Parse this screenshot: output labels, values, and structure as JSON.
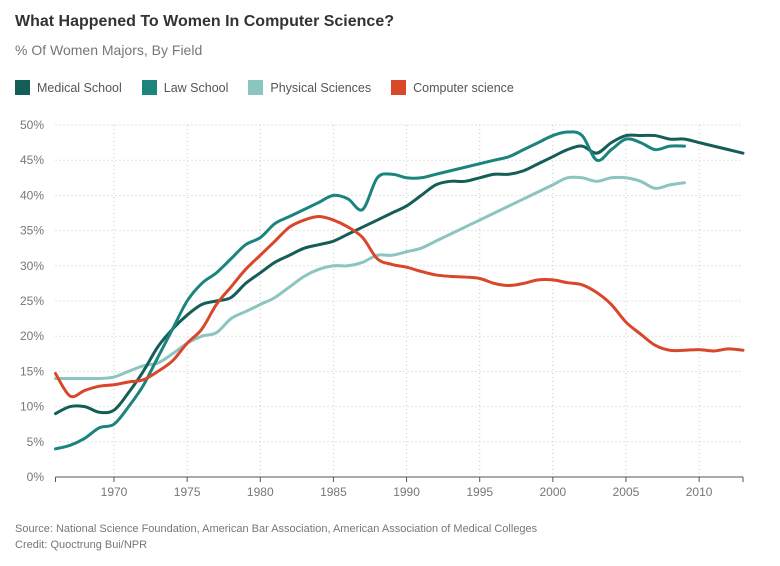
{
  "chart_data": {
    "type": "line",
    "title": "What Happened To Women In Computer Science?",
    "subtitle": "% Of Women Majors, By Field",
    "xlabel": "",
    "ylabel": "",
    "xlim": [
      1966,
      2013
    ],
    "ylim": [
      0,
      50
    ],
    "grid": true,
    "legend_position": "top-left",
    "x_ticks": [
      1970,
      1975,
      1980,
      1985,
      1990,
      1995,
      2000,
      2005,
      2010
    ],
    "y_ticks": [
      0,
      5,
      10,
      15,
      20,
      25,
      30,
      35,
      40,
      45,
      50
    ],
    "y_tick_labels": [
      "0%",
      "5%",
      "10%",
      "15%",
      "20%",
      "25%",
      "30%",
      "35%",
      "40%",
      "45%",
      "50%"
    ],
    "series": [
      {
        "name": "Medical School",
        "color": "#155e58",
        "start_year": 1966,
        "values": [
          9,
          10,
          10,
          9.2,
          9.5,
          12,
          15,
          18.5,
          21,
          23,
          24.5,
          25,
          25.5,
          27.5,
          29,
          30.5,
          31.5,
          32.5,
          33,
          33.5,
          34.5,
          35.5,
          36.5,
          37.5,
          38.5,
          40,
          41.5,
          42,
          42,
          42.5,
          43,
          43,
          43.5,
          44.5,
          45.5,
          46.5,
          47,
          46,
          47.5,
          48.5,
          48.5,
          48.5,
          48,
          48,
          47.5,
          47,
          46.5,
          46
        ]
      },
      {
        "name": "Law School",
        "color": "#1a847d",
        "start_year": 1966,
        "values": [
          4,
          4.5,
          5.5,
          7,
          7.5,
          10,
          13,
          17,
          21,
          25,
          27.5,
          29,
          31,
          33,
          34,
          36,
          37,
          38,
          39,
          40,
          39.5,
          38,
          42.5,
          43,
          42.5,
          42.5,
          43,
          43.5,
          44,
          44.5,
          45,
          45.5,
          46.5,
          47.5,
          48.5,
          49,
          48.5,
          45,
          46.5,
          48,
          47.5,
          46.5,
          47,
          47
        ]
      },
      {
        "name": "Physical Sciences",
        "color": "#8cc4c0",
        "start_year": 1966,
        "values": [
          14,
          14,
          14,
          14,
          14.2,
          15,
          15.8,
          16.2,
          17.5,
          19,
          20,
          20.5,
          22.5,
          23.5,
          24.5,
          25.5,
          27,
          28.5,
          29.5,
          30,
          30,
          30.5,
          31.5,
          31.5,
          32,
          32.5,
          33.5,
          34.5,
          35.5,
          36.5,
          37.5,
          38.5,
          39.5,
          40.5,
          41.5,
          42.5,
          42.5,
          42,
          42.5,
          42.5,
          42,
          41,
          41.5,
          41.8
        ]
      },
      {
        "name": "Computer science",
        "color": "#d9472b",
        "start_year": 1966,
        "values": [
          14.7,
          11.5,
          12.3,
          12.9,
          13.1,
          13.5,
          13.8,
          15,
          16.5,
          19,
          21,
          24.5,
          27,
          29.5,
          31.5,
          33.5,
          35.5,
          36.5,
          37,
          36.5,
          35.5,
          34,
          31,
          30.2,
          29.8,
          29.2,
          28.7,
          28.5,
          28.4,
          28.2,
          27.5,
          27.2,
          27.5,
          28,
          28,
          27.6,
          27.3,
          26.2,
          24.5,
          22,
          20.3,
          18.7,
          18,
          18,
          18.1,
          17.9,
          18.2,
          18
        ]
      }
    ]
  },
  "header": {
    "title": "What Happened To Women In Computer Science?",
    "subtitle": "% Of Women Majors, By Field"
  },
  "legend": [
    {
      "label": "Medical School",
      "color": "#155e58"
    },
    {
      "label": "Law School",
      "color": "#1a847d"
    },
    {
      "label": "Physical Sciences",
      "color": "#8cc4c0"
    },
    {
      "label": "Computer science",
      "color": "#d9472b"
    }
  ],
  "footer": {
    "source": "Source: National Science Foundation, American Bar Association, American Association of Medical Colleges",
    "credit": "Credit: Quoctrung Bui/NPR"
  }
}
